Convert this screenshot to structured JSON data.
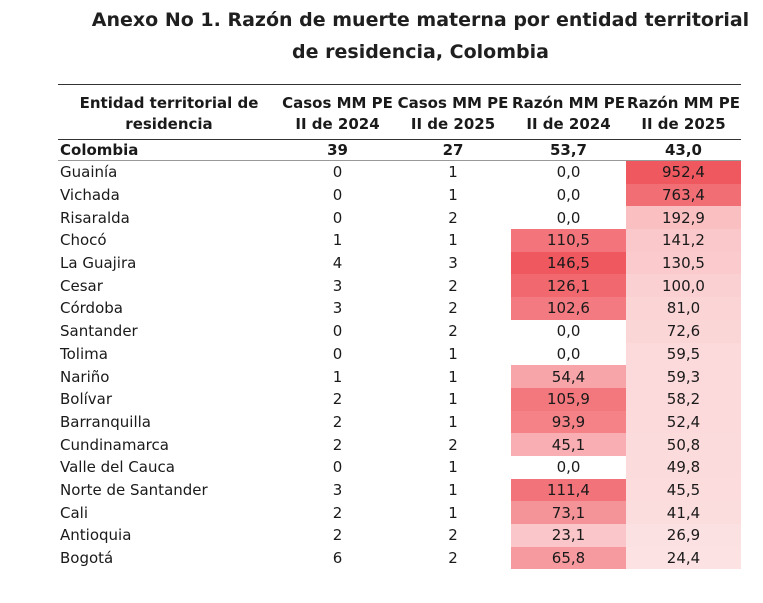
{
  "title": {
    "line1": "Anexo No 1. Razón de muerte materna por entidad territorial",
    "line2": "de residencia, Colombia"
  },
  "headers": {
    "entity": "Entidad territorial de residencia",
    "cases_2024": "Casos MM PE II de 2024",
    "cases_2025": "Casos MM PE II de 2025",
    "rate_2024": "Razón MM PE II de 2024",
    "rate_2025": "Razón MM PE II de 2025"
  },
  "national": {
    "name": "Colombia",
    "cases_2024": "39",
    "cases_2025": "27",
    "rate_2024": "53,7",
    "rate_2025": "43,0"
  },
  "colors": {
    "heat_max": "#f0585f",
    "heat_min": "#ffffff"
  },
  "rows": [
    {
      "name": "Guainía",
      "cases_2024": "0",
      "cases_2025": "1",
      "rate_2024": "0,0",
      "rate_2025": "952,4"
    },
    {
      "name": "Vichada",
      "cases_2024": "0",
      "cases_2025": "1",
      "rate_2024": "0,0",
      "rate_2025": "763,4"
    },
    {
      "name": "Risaralda",
      "cases_2024": "0",
      "cases_2025": "2",
      "rate_2024": "0,0",
      "rate_2025": "192,9"
    },
    {
      "name": "Chocó",
      "cases_2024": "1",
      "cases_2025": "1",
      "rate_2024": "110,5",
      "rate_2025": "141,2"
    },
    {
      "name": "La Guajira",
      "cases_2024": "4",
      "cases_2025": "3",
      "rate_2024": "146,5",
      "rate_2025": "130,5"
    },
    {
      "name": "Cesar",
      "cases_2024": "3",
      "cases_2025": "2",
      "rate_2024": "126,1",
      "rate_2025": "100,0"
    },
    {
      "name": "Córdoba",
      "cases_2024": "3",
      "cases_2025": "2",
      "rate_2024": "102,6",
      "rate_2025": "81,0"
    },
    {
      "name": "Santander",
      "cases_2024": "0",
      "cases_2025": "2",
      "rate_2024": "0,0",
      "rate_2025": "72,6"
    },
    {
      "name": "Tolima",
      "cases_2024": "0",
      "cases_2025": "1",
      "rate_2024": "0,0",
      "rate_2025": "59,5"
    },
    {
      "name": "Nariño",
      "cases_2024": "1",
      "cases_2025": "1",
      "rate_2024": "54,4",
      "rate_2025": "59,3"
    },
    {
      "name": "Bolívar",
      "cases_2024": "2",
      "cases_2025": "1",
      "rate_2024": "105,9",
      "rate_2025": "58,2"
    },
    {
      "name": "Barranquilla",
      "cases_2024": "2",
      "cases_2025": "1",
      "rate_2024": "93,9",
      "rate_2025": "52,4"
    },
    {
      "name": "Cundinamarca",
      "cases_2024": "2",
      "cases_2025": "2",
      "rate_2024": "45,1",
      "rate_2025": "50,8"
    },
    {
      "name": "Valle del Cauca",
      "cases_2024": "0",
      "cases_2025": "1",
      "rate_2024": "0,0",
      "rate_2025": "49,8"
    },
    {
      "name": "Norte de Santander",
      "cases_2024": "3",
      "cases_2025": "1",
      "rate_2024": "111,4",
      "rate_2025": "45,5"
    },
    {
      "name": "Cali",
      "cases_2024": "2",
      "cases_2025": "1",
      "rate_2024": "73,1",
      "rate_2025": "41,4"
    },
    {
      "name": "Antioquia",
      "cases_2024": "2",
      "cases_2025": "2",
      "rate_2024": "23,1",
      "rate_2025": "26,9"
    },
    {
      "name": "Bogotá",
      "cases_2024": "6",
      "cases_2025": "2",
      "rate_2024": "65,8",
      "rate_2025": "24,4"
    }
  ]
}
